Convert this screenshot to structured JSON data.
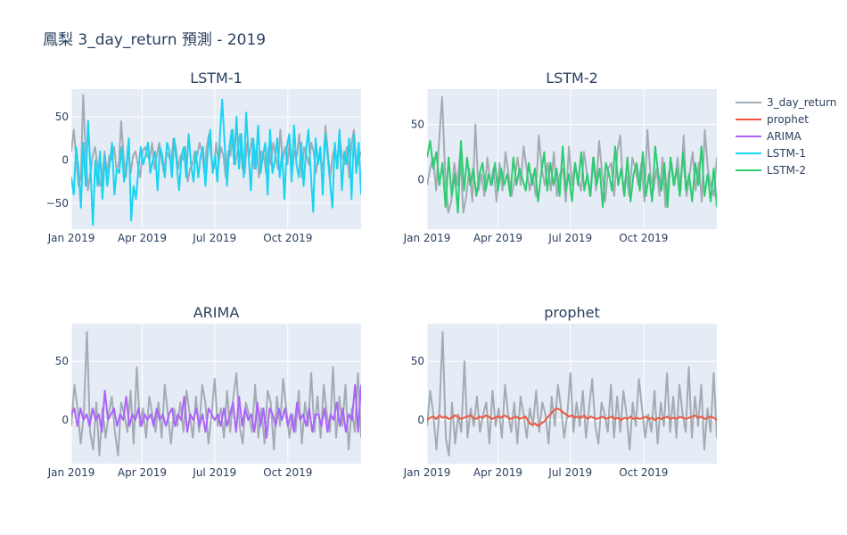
{
  "title": "鳳梨 3_day_return 預測 - 2019",
  "legend": [
    {
      "name": "3_day_return",
      "color": "#a3acb4"
    },
    {
      "name": "prophet",
      "color": "#ef553b"
    },
    {
      "name": "ARIMA",
      "color": "#ab63fa"
    },
    {
      "name": "LSTM-1",
      "color": "#19d3f3"
    },
    {
      "name": "LSTM-2",
      "color": "#2ecc71"
    }
  ],
  "x_tick_labels": [
    "Jan 2019",
    "Apr 2019",
    "Jul 2019",
    "Oct 2019"
  ],
  "chart_data": [
    {
      "type": "line",
      "title": "LSTM-1",
      "x_range": [
        "2019-01-01",
        "2019-12-31"
      ],
      "ylim": [
        -80,
        82
      ],
      "yticks": [
        -50,
        0,
        50
      ],
      "ytick_labels": [
        "−50",
        "0",
        "50"
      ],
      "grid": true,
      "series": [
        {
          "name": "3_day_return",
          "color": "#a3acb4",
          "values": [
            10,
            35,
            5,
            -30,
            -20,
            75,
            10,
            -35,
            -15,
            5,
            15,
            -5,
            -30,
            -20,
            10,
            -15,
            5,
            0,
            15,
            -10,
            -5,
            45,
            5,
            -20,
            15,
            -15,
            5,
            10,
            -5,
            -20,
            10,
            15,
            5,
            0,
            20,
            -10,
            5,
            20,
            0,
            -15,
            10,
            5,
            -5,
            25,
            15,
            -10,
            5,
            0,
            15,
            -25,
            -10,
            -5,
            10,
            5,
            20,
            10,
            -15,
            15,
            30,
            0,
            -10,
            20,
            -5,
            15,
            5,
            -20,
            10,
            5,
            35,
            -5,
            10,
            30,
            -10,
            -15,
            20,
            5,
            25,
            -10,
            15,
            -20,
            10,
            5,
            -15,
            15,
            -5,
            20,
            5,
            -10,
            35,
            0,
            15,
            -5,
            25,
            -15,
            10,
            5,
            30,
            -20,
            15,
            5,
            -5,
            20,
            10,
            -15,
            5,
            0,
            -10,
            40,
            10,
            -20,
            5,
            15,
            -10,
            25,
            5,
            -5,
            15,
            -20,
            20,
            35,
            -10,
            0,
            10
          ]
        },
        {
          "name": "LSTM-1",
          "color": "#19d3f3",
          "values": [
            -20,
            -40,
            15,
            -10,
            -55,
            20,
            -30,
            45,
            -10,
            -75,
            0,
            -30,
            10,
            -45,
            5,
            -30,
            -5,
            20,
            -40,
            -10,
            -15,
            15,
            -25,
            -5,
            25,
            -70,
            -30,
            -45,
            -10,
            15,
            -5,
            5,
            20,
            -15,
            0,
            10,
            -35,
            15,
            5,
            -20,
            20,
            10,
            -20,
            25,
            -5,
            -35,
            5,
            15,
            -20,
            30,
            -5,
            -25,
            10,
            -20,
            5,
            15,
            -30,
            10,
            35,
            -15,
            5,
            -25,
            25,
            70,
            20,
            -30,
            15,
            35,
            -5,
            50,
            -10,
            30,
            -20,
            55,
            5,
            -35,
            25,
            -10,
            40,
            -15,
            5,
            20,
            -40,
            35,
            -15,
            0,
            25,
            -20,
            10,
            -45,
            15,
            30,
            -25,
            40,
            -5,
            -20,
            20,
            -30,
            10,
            35,
            -15,
            -60,
            25,
            -5,
            15,
            -40,
            30,
            5,
            -25,
            -55,
            20,
            -10,
            35,
            -35,
            10,
            -5,
            25,
            -45,
            30,
            -15,
            20,
            -40
          ]
        }
      ]
    },
    {
      "type": "line",
      "title": "LSTM-2",
      "x_range": [
        "2019-01-01",
        "2019-12-31"
      ],
      "ylim": [
        -45,
        82
      ],
      "yticks": [
        0,
        50
      ],
      "ytick_labels": [
        "0",
        "50"
      ],
      "grid": true,
      "series": [
        {
          "name": "3_day_return",
          "color": "#a3acb4",
          "values": [
            -5,
            10,
            20,
            -10,
            35,
            75,
            5,
            -30,
            -20,
            15,
            -5,
            25,
            -30,
            -15,
            10,
            -20,
            50,
            -10,
            5,
            -15,
            20,
            -5,
            10,
            -20,
            15,
            -10,
            25,
            5,
            -15,
            0,
            20,
            -5,
            30,
            10,
            -10,
            5,
            -15,
            40,
            10,
            -5,
            15,
            -10,
            25,
            -15,
            5,
            10,
            -20,
            30,
            -5,
            15,
            0,
            -10,
            25,
            5,
            -15,
            20,
            -10,
            35,
            5,
            -20,
            10,
            15,
            -15,
            25,
            40,
            -10,
            5,
            -15,
            20,
            10,
            -5,
            15,
            -20,
            45,
            5,
            -10,
            10,
            -15,
            20,
            -25,
            5,
            15,
            -5,
            20,
            -10,
            40,
            -15,
            5,
            25,
            -10,
            15,
            -20,
            45,
            10,
            -5,
            -15,
            20
          ]
        },
        {
          "name": "LSTM-2",
          "color": "#2ecc71",
          "values": [
            20,
            35,
            10,
            25,
            -5,
            15,
            -25,
            20,
            -15,
            5,
            -30,
            35,
            -10,
            20,
            -5,
            10,
            -15,
            5,
            15,
            -10,
            5,
            -5,
            15,
            -10,
            10,
            -5,
            5,
            -15,
            20,
            -5,
            10,
            0,
            -10,
            15,
            -5,
            10,
            -20,
            5,
            25,
            -10,
            15,
            -5,
            10,
            -15,
            30,
            -10,
            5,
            -20,
            15,
            -5,
            25,
            -10,
            5,
            -15,
            20,
            -5,
            10,
            -25,
            15,
            5,
            -10,
            30,
            -5,
            10,
            -15,
            20,
            -20,
            5,
            15,
            -10,
            25,
            -15,
            5,
            -20,
            30,
            5,
            -10,
            15,
            -25,
            20,
            -5,
            10,
            -15,
            25,
            -10,
            5,
            -20,
            15,
            -5,
            30,
            -15,
            5,
            -20,
            10,
            -25
          ]
        }
      ]
    },
    {
      "type": "line",
      "title": "ARIMA",
      "x_range": [
        "2019-01-01",
        "2019-12-31"
      ],
      "ylim": [
        -37,
        82
      ],
      "yticks": [
        0,
        50
      ],
      "ytick_labels": [
        "0",
        "50"
      ],
      "grid": true,
      "series": [
        {
          "name": "3_day_return",
          "color": "#a3acb4",
          "values": [
            -5,
            30,
            10,
            -20,
            5,
            75,
            -10,
            -25,
            15,
            -30,
            10,
            -15,
            5,
            20,
            -10,
            -30,
            15,
            5,
            -10,
            25,
            -20,
            45,
            -5,
            10,
            -15,
            20,
            5,
            -10,
            15,
            -15,
            30,
            5,
            -20,
            10,
            -5,
            15,
            -10,
            25,
            5,
            -15,
            20,
            -10,
            30,
            15,
            -20,
            5,
            35,
            -5,
            10,
            -15,
            25,
            -10,
            20,
            40,
            -5,
            -20,
            15,
            5,
            -10,
            30,
            -15,
            10,
            -20,
            25,
            15,
            -25,
            20,
            -5,
            35,
            10,
            -15,
            5,
            -10,
            25,
            -20,
            15,
            -5,
            40,
            -10,
            20,
            -15,
            30,
            5,
            -10,
            45,
            -15,
            20,
            -5,
            30,
            -25,
            10,
            -10,
            40,
            -15
          ]
        },
        {
          "name": "ARIMA",
          "color": "#ab63fa",
          "values": [
            5,
            10,
            -5,
            10,
            0,
            5,
            -5,
            10,
            0,
            5,
            -10,
            25,
            0,
            5,
            10,
            -5,
            5,
            0,
            20,
            -5,
            5,
            0,
            10,
            -5,
            5,
            0,
            5,
            -5,
            10,
            0,
            5,
            -5,
            5,
            10,
            -5,
            5,
            0,
            20,
            -10,
            5,
            0,
            10,
            -5,
            5,
            -10,
            10,
            5,
            0,
            5,
            -5,
            10,
            -5,
            5,
            15,
            -10,
            20,
            -5,
            10,
            0,
            5,
            -10,
            15,
            -5,
            10,
            -15,
            10,
            5,
            -5,
            10,
            0,
            10,
            -5,
            5,
            -10,
            15,
            0,
            5,
            -5,
            10,
            -10,
            5,
            5,
            -5,
            10,
            -10,
            5,
            0,
            15,
            -5,
            10,
            -10,
            5,
            0,
            30,
            -10,
            30
          ]
        }
      ]
    },
    {
      "type": "line",
      "title": "prophet",
      "x_range": [
        "2019-01-01",
        "2019-12-31"
      ],
      "ylim": [
        -37,
        82
      ],
      "yticks": [
        0,
        50
      ],
      "ytick_labels": [
        "0",
        "50"
      ],
      "grid": true,
      "series": [
        {
          "name": "3_day_return",
          "color": "#a3acb4",
          "values": [
            -5,
            25,
            5,
            -25,
            10,
            75,
            -15,
            -30,
            15,
            -20,
            5,
            -10,
            50,
            -15,
            10,
            -5,
            20,
            -10,
            5,
            15,
            -20,
            25,
            -5,
            10,
            -15,
            30,
            5,
            -10,
            15,
            -20,
            20,
            5,
            -15,
            10,
            -5,
            25,
            -10,
            15,
            5,
            -20,
            20,
            -5,
            30,
            10,
            -15,
            5,
            40,
            -10,
            15,
            -5,
            25,
            -15,
            10,
            35,
            -5,
            -20,
            15,
            5,
            -10,
            30,
            -15,
            20,
            -10,
            25,
            5,
            -25,
            15,
            -5,
            35,
            10,
            -15,
            5,
            -10,
            25,
            -20,
            15,
            -5,
            40,
            -10,
            20,
            -15,
            30,
            5,
            -10,
            45,
            -15,
            20,
            -5,
            30,
            -25,
            10,
            -10,
            40,
            -15
          ]
        },
        {
          "name": "prophet",
          "color": "#ef553b",
          "values": [
            0,
            2,
            3,
            1,
            4,
            2,
            3,
            1,
            2,
            4,
            3,
            1,
            2,
            3,
            4,
            2,
            1,
            3,
            2,
            4,
            3,
            1,
            2,
            3,
            2,
            4,
            3,
            1,
            2,
            3,
            1,
            2,
            3,
            -2,
            -4,
            -3,
            -5,
            -3,
            -1,
            2,
            5,
            8,
            10,
            9,
            7,
            5,
            3,
            4,
            2,
            3,
            2,
            4,
            1,
            3,
            2,
            1,
            2,
            3,
            1,
            2,
            3,
            1,
            2,
            0,
            2,
            1,
            3,
            1,
            2,
            1,
            2,
            3,
            1,
            2,
            0,
            2,
            1,
            2,
            3,
            1,
            2,
            1,
            3,
            2,
            1,
            2,
            3,
            4,
            2,
            3,
            1,
            2,
            3,
            2,
            0
          ]
        }
      ]
    }
  ]
}
